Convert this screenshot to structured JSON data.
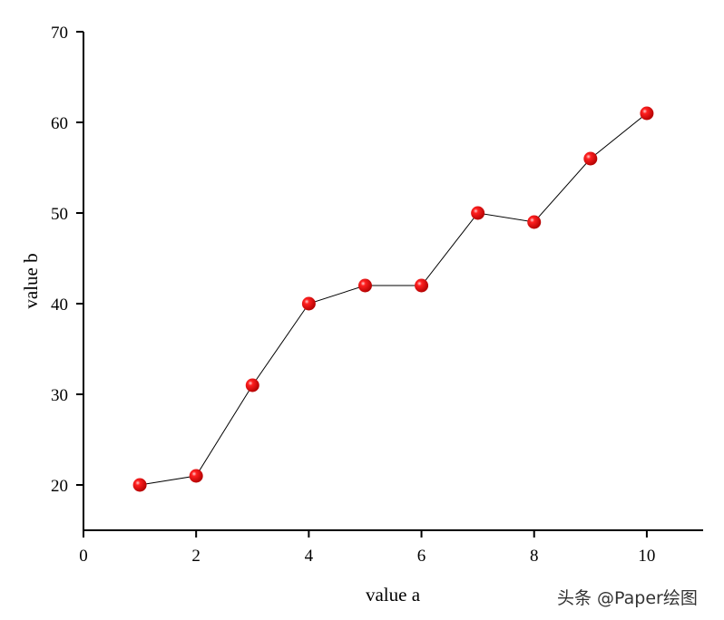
{
  "chart_data": {
    "type": "line",
    "title": "",
    "xlabel": "value a",
    "ylabel": "value b",
    "xlim": [
      0,
      11
    ],
    "ylim": [
      15,
      70
    ],
    "xticks": [
      0,
      2,
      4,
      6,
      8,
      10
    ],
    "yticks": [
      20,
      30,
      40,
      50,
      60,
      70
    ],
    "grid": false,
    "series": [
      {
        "name": "value b",
        "x": [
          1,
          2,
          3,
          4,
          5,
          6,
          7,
          8,
          9,
          10
        ],
        "y": [
          20,
          21,
          31,
          40,
          42,
          42,
          50,
          49,
          56,
          61
        ],
        "line_color": "#000000",
        "marker_color": "#ff0000",
        "marker": "sphere"
      }
    ]
  },
  "watermark": "头条 @Paper绘图"
}
